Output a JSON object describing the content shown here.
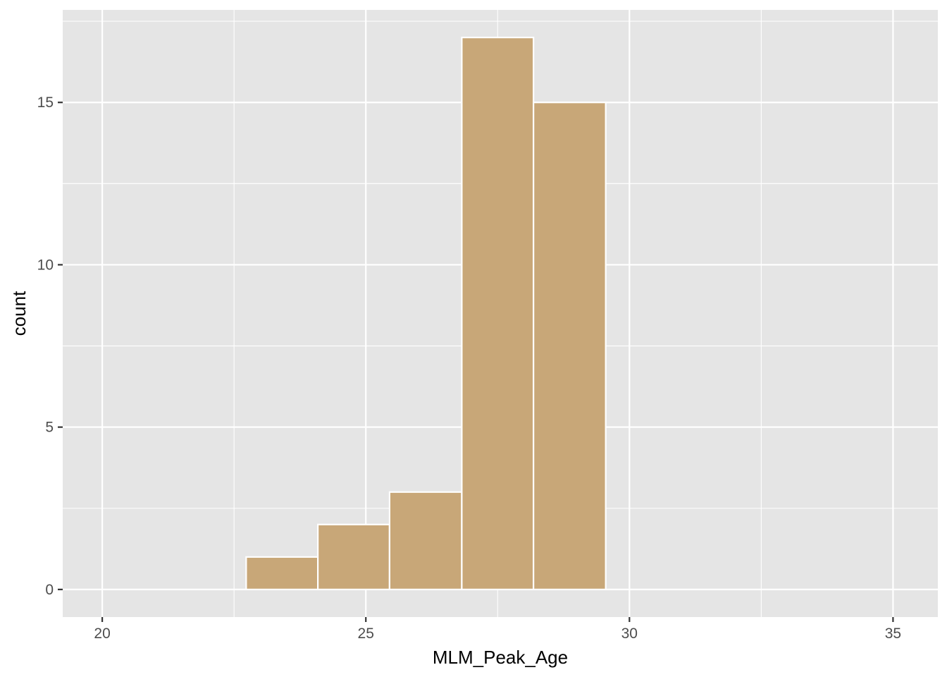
{
  "chart_data": {
    "type": "bar",
    "subtype": "histogram",
    "title": "",
    "xlabel": "MLM_Peak_Age",
    "ylabel": "count",
    "xlim": [
      19.25,
      35.85
    ],
    "ylim": [
      -0.85,
      17.85
    ],
    "x_ticks": [
      20,
      25,
      30,
      35
    ],
    "y_ticks": [
      0,
      5,
      10,
      15
    ],
    "x_minor_ticks": [
      22.5,
      27.5,
      32.5
    ],
    "y_minor_ticks": [
      2.5,
      7.5,
      12.5,
      17.5
    ],
    "bins": [
      {
        "x_start": 20.0,
        "x_end": 21.36,
        "count": 0
      },
      {
        "x_start": 21.36,
        "x_end": 22.73,
        "count": 0
      },
      {
        "x_start": 22.73,
        "x_end": 24.09,
        "count": 1
      },
      {
        "x_start": 24.09,
        "x_end": 25.45,
        "count": 2
      },
      {
        "x_start": 25.45,
        "x_end": 26.82,
        "count": 3
      },
      {
        "x_start": 26.82,
        "x_end": 28.18,
        "count": 17
      },
      {
        "x_start": 28.18,
        "x_end": 29.55,
        "count": 15
      },
      {
        "x_start": 29.55,
        "x_end": 30.91,
        "count": 0
      },
      {
        "x_start": 30.91,
        "x_end": 32.27,
        "count": 0
      },
      {
        "x_start": 32.27,
        "x_end": 33.64,
        "count": 0
      },
      {
        "x_start": 33.64,
        "x_end": 35.0,
        "count": 0
      }
    ],
    "colors": {
      "panel_background": "#e5e5e5",
      "grid": "#ffffff",
      "bar_fill": "#c8a778",
      "bar_outline": "#ffffff",
      "tick_text": "#4d4d4d",
      "title_text": "#000000"
    },
    "grid": true,
    "legend": "none"
  }
}
